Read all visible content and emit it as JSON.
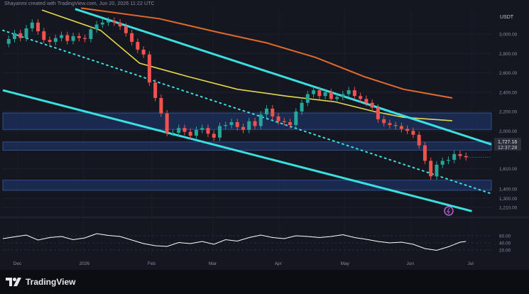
{
  "header": {
    "attribution": "Shayanmi created with TradingView.com, Jun 20, 2026 11:22 UTC"
  },
  "footer": {
    "brand": "TradingView"
  },
  "price_panel": {
    "currency": "USDT",
    "last_price": "1,727.16",
    "countdown": "12:37:28"
  },
  "rsi_panel": {
    "ticks": [
      "60.00",
      "40.00",
      "20.00"
    ],
    "ylim": [
      0,
      100
    ]
  },
  "colors": {
    "background": "#141620",
    "bull": "#26a69a",
    "bear": "#ef5350",
    "channel": "#3ae0e0",
    "ma_fast": "#e6d84a",
    "ma_slow": "#e06a2c",
    "zone": "#1f3a74",
    "rsi": "#ffffff"
  },
  "chart_data": [
    {
      "type": "candlestick",
      "x_ticks": [
        "Dec",
        "2026",
        "Feb",
        "Mar",
        "Apr",
        "May",
        "Jun",
        "Jul"
      ],
      "y_ticks": [
        "3,000.00",
        "2,800.00",
        "2,600.00",
        "2,400.00",
        "2,200.00",
        "2,000.00",
        "1,850.00",
        "1,610.00",
        "1,400.00",
        "1,300.00",
        "1,210.00"
      ],
      "ylim": [
        1150,
        3280
      ],
      "x_range": [
        0,
        250
      ],
      "close_series": [
        [
          0,
          2900
        ],
        [
          3,
          2950
        ],
        [
          6,
          3010
        ],
        [
          9,
          2960
        ],
        [
          12,
          3060
        ],
        [
          15,
          3120
        ],
        [
          18,
          3030
        ],
        [
          21,
          2940
        ],
        [
          24,
          2920
        ],
        [
          27,
          2960
        ],
        [
          30,
          2990
        ],
        [
          33,
          2930
        ],
        [
          36,
          2980
        ],
        [
          39,
          2960
        ],
        [
          42,
          2950
        ],
        [
          45,
          3050
        ],
        [
          48,
          3100
        ],
        [
          51,
          3120
        ],
        [
          54,
          3140
        ],
        [
          57,
          3120
        ],
        [
          60,
          3080
        ],
        [
          63,
          3010
        ],
        [
          66,
          2920
        ],
        [
          69,
          2840
        ],
        [
          72,
          2790
        ],
        [
          75,
          2500
        ],
        [
          78,
          2340
        ],
        [
          81,
          2180
        ],
        [
          84,
          1980
        ],
        [
          87,
          1980
        ],
        [
          90,
          2030
        ],
        [
          93,
          1990
        ],
        [
          96,
          1950
        ],
        [
          99,
          2010
        ],
        [
          102,
          2030
        ],
        [
          105,
          1970
        ],
        [
          108,
          1930
        ],
        [
          111,
          2050
        ],
        [
          114,
          2060
        ],
        [
          117,
          2090
        ],
        [
          120,
          2040
        ],
        [
          123,
          2010
        ],
        [
          126,
          2100
        ],
        [
          129,
          2050
        ],
        [
          132,
          2170
        ],
        [
          135,
          2230
        ],
        [
          138,
          2150
        ],
        [
          141,
          2100
        ],
        [
          144,
          2090
        ],
        [
          147,
          2060
        ],
        [
          150,
          2200
        ],
        [
          153,
          2290
        ],
        [
          156,
          2380
        ],
        [
          159,
          2420
        ],
        [
          162,
          2360
        ],
        [
          165,
          2400
        ],
        [
          168,
          2330
        ],
        [
          171,
          2350
        ],
        [
          174,
          2380
        ],
        [
          177,
          2420
        ],
        [
          180,
          2360
        ],
        [
          183,
          2330
        ],
        [
          186,
          2290
        ],
        [
          189,
          2240
        ],
        [
          192,
          2120
        ],
        [
          195,
          2080
        ],
        [
          198,
          2060
        ],
        [
          201,
          2050
        ],
        [
          204,
          2020
        ],
        [
          207,
          2000
        ],
        [
          210,
          1960
        ],
        [
          213,
          1850
        ],
        [
          216,
          1690
        ],
        [
          219,
          1530
        ],
        [
          222,
          1650
        ],
        [
          225,
          1690
        ],
        [
          228,
          1700
        ],
        [
          231,
          1760
        ],
        [
          234,
          1740
        ],
        [
          237,
          1727
        ]
      ],
      "support_resistance_zones": [
        [
          1885,
          1800
        ],
        [
          2185,
          2015
        ],
        [
          1490,
          1385
        ]
      ],
      "channel_upper": [
        [
          37,
          3260
        ],
        [
          250,
          1860
        ]
      ],
      "channel_lower": [
        [
          0,
          2420
        ],
        [
          240,
          1170
        ]
      ],
      "channel_mid_dotted": [
        [
          0,
          3040
        ],
        [
          250,
          1350
        ]
      ],
      "ma_fast": [
        [
          20,
          3250
        ],
        [
          50,
          3040
        ],
        [
          70,
          2700
        ],
        [
          95,
          2560
        ],
        [
          120,
          2430
        ],
        [
          145,
          2360
        ],
        [
          170,
          2300
        ],
        [
          190,
          2200
        ],
        [
          205,
          2140
        ],
        [
          230,
          2105
        ]
      ],
      "ma_slow": [
        [
          40,
          3270
        ],
        [
          80,
          3160
        ],
        [
          110,
          3020
        ],
        [
          135,
          2910
        ],
        [
          160,
          2760
        ],
        [
          185,
          2560
        ],
        [
          205,
          2430
        ],
        [
          230,
          2340
        ]
      ],
      "last_price": 1727.16
    },
    {
      "type": "line",
      "name": "RSI",
      "ylim": [
        0,
        100
      ],
      "y_ticks": [
        60,
        40,
        20
      ],
      "x": [
        0,
        6,
        12,
        18,
        24,
        30,
        36,
        42,
        48,
        54,
        60,
        66,
        72,
        78,
        84,
        90,
        96,
        102,
        108,
        114,
        120,
        126,
        132,
        138,
        144,
        150,
        156,
        162,
        168,
        174,
        180,
        186,
        192,
        198,
        204,
        210,
        216,
        222,
        228,
        234,
        237
      ],
      "values": [
        52,
        57,
        62,
        48,
        55,
        58,
        49,
        54,
        66,
        61,
        58,
        48,
        38,
        32,
        30,
        41,
        38,
        44,
        36,
        49,
        45,
        55,
        62,
        55,
        52,
        60,
        58,
        55,
        58,
        63,
        55,
        50,
        44,
        40,
        42,
        36,
        24,
        19,
        29,
        42,
        44
      ]
    }
  ]
}
